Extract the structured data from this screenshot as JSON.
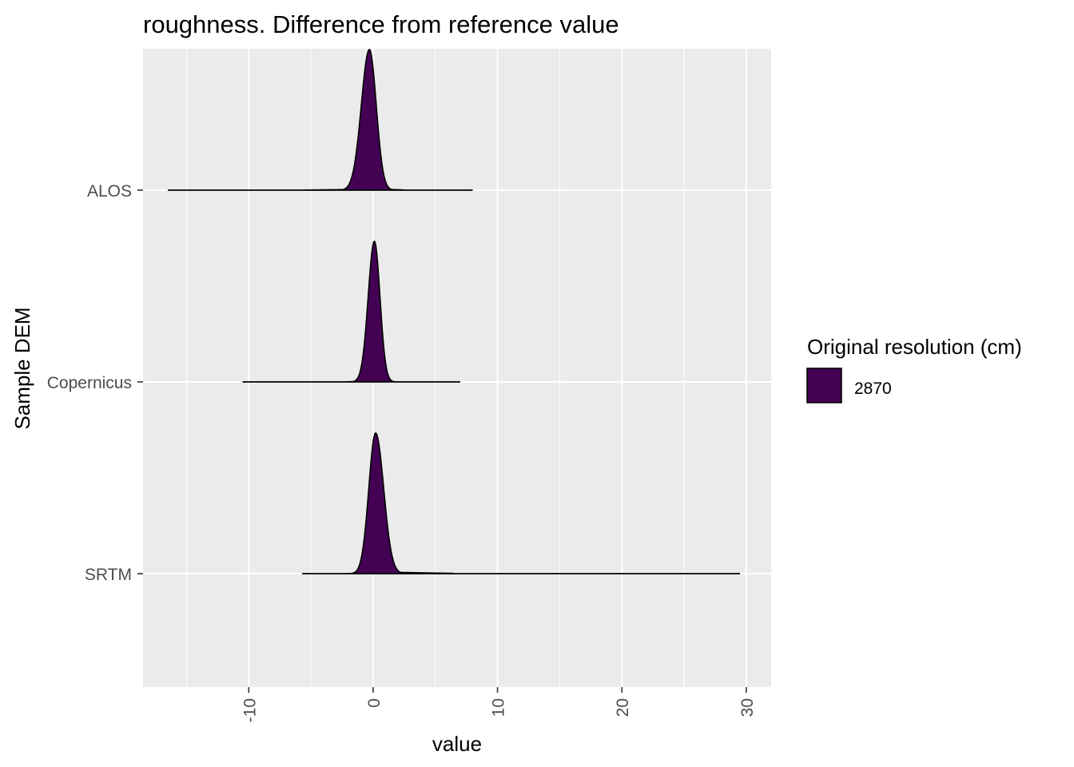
{
  "chart_data": {
    "type": "ridgeline",
    "title": "roughness. Difference from reference value",
    "xlabel": "value",
    "ylabel": "Sample DEM",
    "xlim": [
      -18.5,
      32
    ],
    "x_ticks": [
      -10,
      0,
      10,
      20,
      30
    ],
    "x_tick_labels": [
      "-10",
      "0",
      "10",
      "20",
      "30"
    ],
    "x_minor_ticks": [
      -15,
      -5,
      5,
      15,
      25
    ],
    "categories": [
      "ALOS",
      "Copernicus",
      "SRTM"
    ],
    "grid": true,
    "fill_color": "#440154",
    "legend": {
      "title": "Original resolution (cm)",
      "placement": "right",
      "entries": [
        {
          "label": "2870",
          "color": "#440154"
        }
      ]
    },
    "series": [
      {
        "category": "ALOS",
        "peak": -0.3,
        "spread_left": 0.65,
        "spread_right": 0.55,
        "min": -16.5,
        "max": 8.0,
        "tail_right_to": 2.4,
        "tail_right_level": 0.007,
        "tail_left_from": -5.5,
        "tail_left_level": 0.005
      },
      {
        "category": "Copernicus",
        "peak": 0.1,
        "spread_left": 0.5,
        "spread_right": 0.45,
        "min": -10.5,
        "max": 7.0,
        "tail_right_to": 0,
        "tail_right_level": 0,
        "tail_left_from": -2.2,
        "tail_left_level": 0.004
      },
      {
        "category": "SRTM",
        "peak": 0.2,
        "spread_left": 0.55,
        "spread_right": 0.65,
        "min": -5.7,
        "max": 29.5,
        "tail_right_to": 6.5,
        "tail_right_level": 0.01,
        "tail_left_from": -2.0,
        "tail_left_level": 0.004
      }
    ]
  }
}
